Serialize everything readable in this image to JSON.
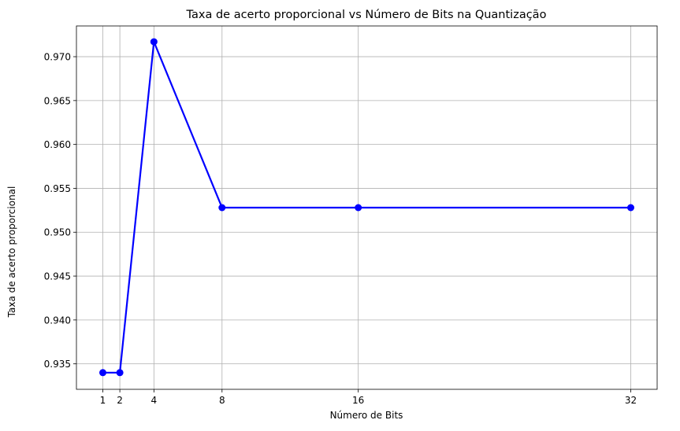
{
  "chart_data": {
    "type": "line",
    "title": "Taxa de acerto proporcional vs Número de Bits na Quantização",
    "xlabel": "Número de Bits",
    "ylabel": "Taxa de acerto proporcional",
    "x": [
      1,
      2,
      4,
      8,
      16,
      32
    ],
    "x_tick_labels": [
      "1",
      "2",
      "4",
      "8",
      "16",
      "32"
    ],
    "series": [
      {
        "values": [
          0.934,
          0.934,
          0.9717,
          0.9528,
          0.9528,
          0.9528
        ],
        "color": "#0000ff",
        "marker": "circle"
      }
    ],
    "xlim": [
      -0.55,
      33.55
    ],
    "ylim": [
      0.9321,
      0.9735
    ],
    "y_ticks": [
      0.935,
      0.94,
      0.945,
      0.95,
      0.955,
      0.96,
      0.965,
      0.97
    ],
    "y_tick_labels": [
      "0.935",
      "0.940",
      "0.945",
      "0.950",
      "0.955",
      "0.960",
      "0.965",
      "0.970"
    ],
    "grid": true,
    "legend": "none"
  }
}
